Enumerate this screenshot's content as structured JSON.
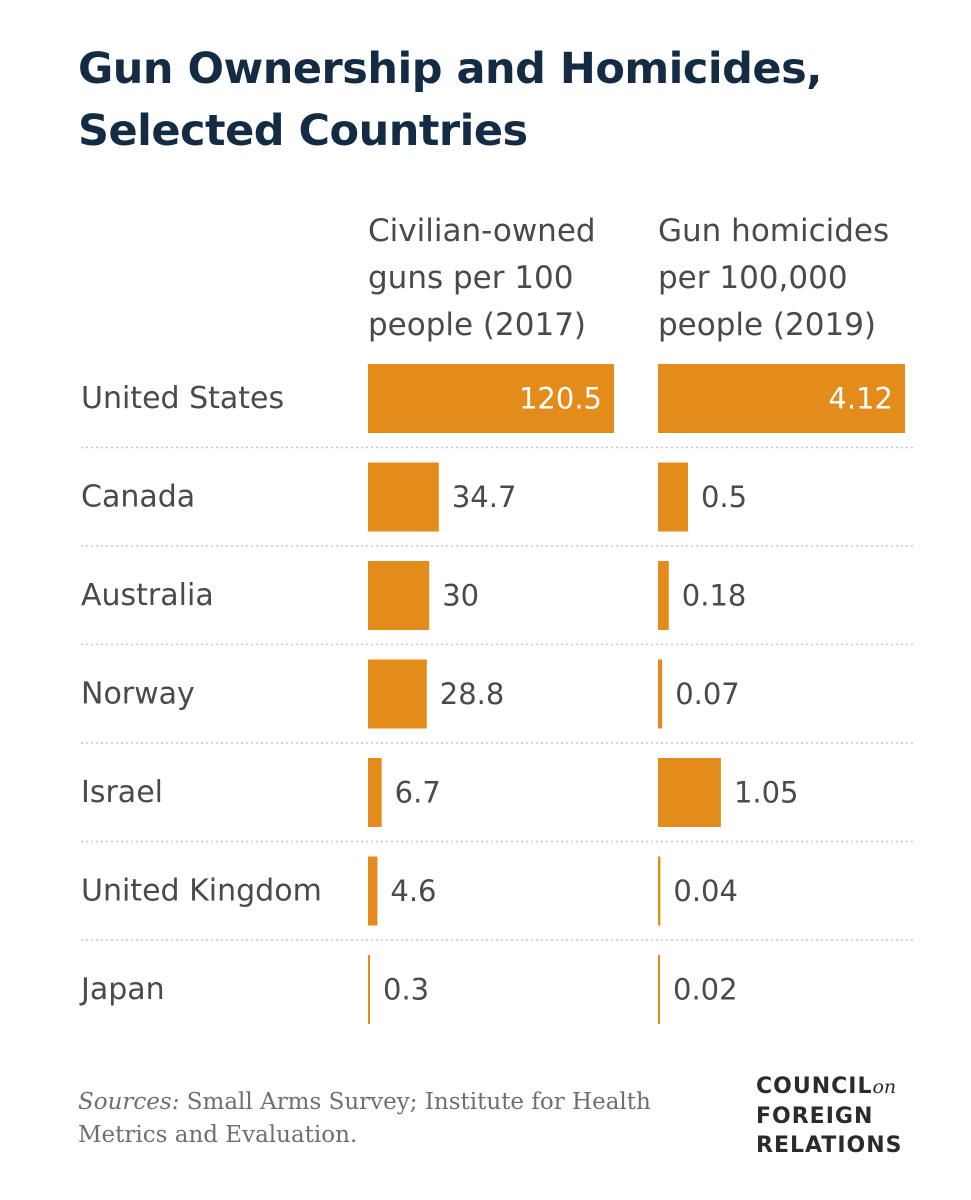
{
  "header": {
    "title_line1": "Gun Ownership and Homicides,",
    "title_line2": "Selected Countries"
  },
  "colors": {
    "bar": "#e38b1b",
    "title": "#132c44",
    "text": "#4a4a4a",
    "label_on_bar": "#ffffff",
    "divider": "#c9c9c9"
  },
  "chart_data": {
    "type": "bar",
    "orientation": "horizontal",
    "categories": [
      "United States",
      "Canada",
      "Australia",
      "Norway",
      "Israel",
      "United Kingdom",
      "Japan"
    ],
    "series": [
      {
        "name": "Civilian-owned guns per 100 people (2017)",
        "header_lines": [
          "Civilian-owned",
          "guns per 100",
          "people (2017)"
        ],
        "values": [
          120.5,
          34.7,
          30,
          28.8,
          6.7,
          4.6,
          0.3
        ],
        "labels": [
          "120.5",
          "34.7",
          "30",
          "28.8",
          "6.7",
          "4.6",
          "0.3"
        ]
      },
      {
        "name": "Gun homicides per 100,000 people (2019)",
        "header_lines": [
          "Gun homicides",
          "per 100,000",
          "people (2019)"
        ],
        "values": [
          4.12,
          0.5,
          0.18,
          0.07,
          1.05,
          0.04,
          0.02
        ],
        "labels": [
          "4.12",
          "0.5",
          "0.18",
          "0.07",
          "1.05",
          "0.04",
          "0.02"
        ]
      }
    ],
    "title": "Gun Ownership and Homicides, Selected Countries",
    "xlim": [
      [
        0,
        120.5
      ],
      [
        0,
        4.12
      ]
    ],
    "grid": false,
    "legend": "none"
  },
  "footer": {
    "sources_label": "Sources:",
    "sources_text": " Small Arms Survey; Institute for Health Metrics and Evaluation.",
    "logo_line1": "COUNCIL",
    "logo_on": "on",
    "logo_line2": "FOREIGN",
    "logo_line3": "RELATIONS"
  }
}
